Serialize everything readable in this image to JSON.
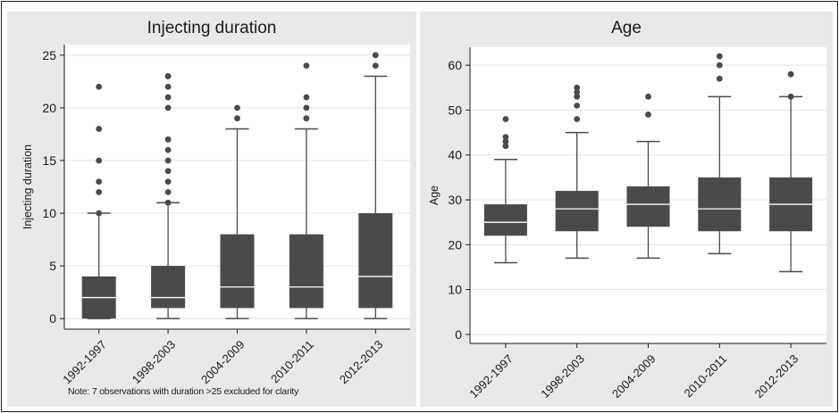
{
  "chart_data": [
    {
      "type": "box",
      "title": "Injecting duration",
      "ylabel": "Injecting duration",
      "xlabel": "",
      "ylim": [
        -1,
        26
      ],
      "yticks": [
        0,
        5,
        10,
        15,
        20,
        25
      ],
      "grid": true,
      "note": "Note: 7 observations with duration >25 excluded for clarity",
      "categories": [
        "1992-1997",
        "1998-2003",
        "2004-2009",
        "2010-2011",
        "2012-2013"
      ],
      "boxes": [
        {
          "whisker_low": 0,
          "q1": 0,
          "median": 2,
          "q3": 4,
          "whisker_high": 10,
          "outliers": [
            10,
            12,
            13,
            15,
            18,
            22
          ]
        },
        {
          "whisker_low": 0,
          "q1": 1,
          "median": 2,
          "q3": 5,
          "whisker_high": 11,
          "outliers": [
            11,
            12,
            13,
            14,
            15,
            16,
            17,
            20,
            21,
            22,
            23
          ]
        },
        {
          "whisker_low": 0,
          "q1": 1,
          "median": 3,
          "q3": 8,
          "whisker_high": 18,
          "outliers": [
            19,
            20
          ]
        },
        {
          "whisker_low": 0,
          "q1": 1,
          "median": 3,
          "q3": 8,
          "whisker_high": 18,
          "outliers": [
            19,
            20,
            21,
            24
          ]
        },
        {
          "whisker_low": 0,
          "q1": 1,
          "median": 4,
          "q3": 10,
          "whisker_high": 23,
          "outliers": [
            24,
            25
          ]
        }
      ]
    },
    {
      "type": "box",
      "title": "Age",
      "ylabel": "Age",
      "xlabel": "",
      "ylim": [
        -2,
        64
      ],
      "yticks": [
        0,
        10,
        20,
        30,
        40,
        50,
        60
      ],
      "grid": true,
      "categories": [
        "1992-1997",
        "1998-2003",
        "2004-2009",
        "2010-2011",
        "2012-2013"
      ],
      "boxes": [
        {
          "whisker_low": 16,
          "q1": 22,
          "median": 25,
          "q3": 29,
          "whisker_high": 39,
          "outliers": [
            42,
            43,
            44,
            48
          ]
        },
        {
          "whisker_low": 17,
          "q1": 23,
          "median": 28,
          "q3": 32,
          "whisker_high": 45,
          "outliers": [
            48,
            51,
            53,
            54,
            55
          ]
        },
        {
          "whisker_low": 17,
          "q1": 24,
          "median": 29,
          "q3": 33,
          "whisker_high": 43,
          "outliers": [
            49,
            53
          ]
        },
        {
          "whisker_low": 18,
          "q1": 23,
          "median": 28,
          "q3": 35,
          "whisker_high": 53,
          "outliers": [
            57,
            60,
            62
          ]
        },
        {
          "whisker_low": 14,
          "q1": 23,
          "median": 29,
          "q3": 35,
          "whisker_high": 53,
          "outliers": [
            53,
            58
          ]
        }
      ]
    }
  ],
  "colors": {
    "box": "#4a4a4a",
    "plot_bg": "#ffffff",
    "panel_bg": "#e9e9e9",
    "grid": "#e3e3e3",
    "ink": "#1a1a1a"
  }
}
